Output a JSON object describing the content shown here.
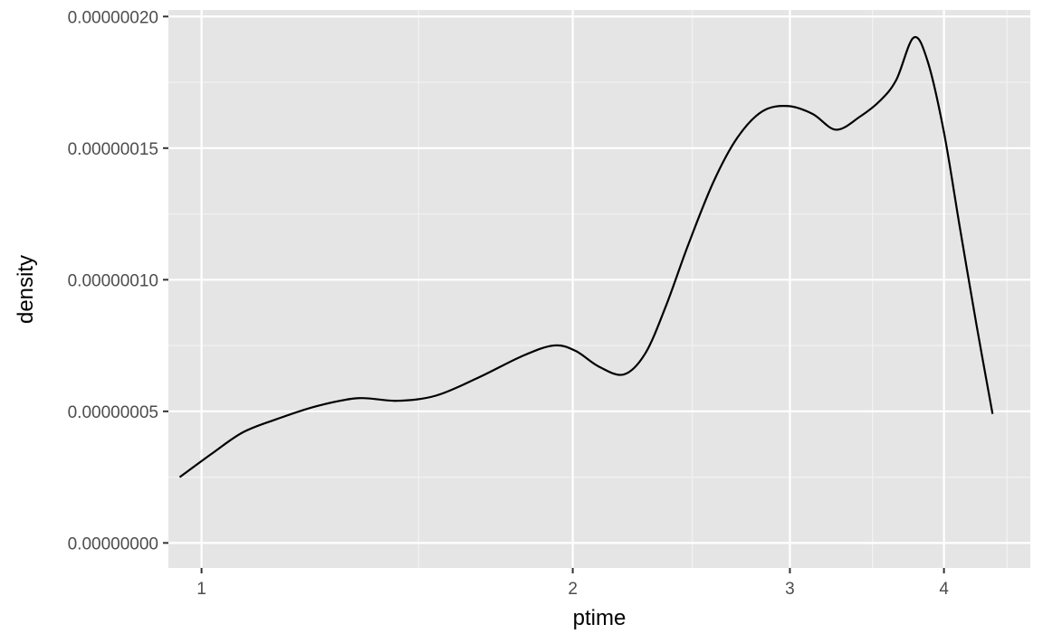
{
  "chart_data": {
    "type": "line",
    "title": "",
    "xlabel": "ptime",
    "ylabel": "density",
    "x_scale": "log10",
    "xlim": [
      0.94,
      4.7
    ],
    "ylim": [
      -9.5e-09,
      2.025e-07
    ],
    "x_ticks": [
      {
        "value": 1,
        "label": "1"
      },
      {
        "value": 2,
        "label": "2"
      },
      {
        "value": 3,
        "label": "3"
      },
      {
        "value": 4,
        "label": "4"
      }
    ],
    "x_minor_ticks": [
      1.5,
      2.5,
      3.5,
      4.5
    ],
    "y_ticks": [
      {
        "value": 0,
        "label": "0.00000000"
      },
      {
        "value": 5e-08,
        "label": "0.00000005"
      },
      {
        "value": 1e-07,
        "label": "0.00000010"
      },
      {
        "value": 1.5e-07,
        "label": "0.00000015"
      },
      {
        "value": 2e-07,
        "label": "0.00000020"
      }
    ],
    "y_minor_ticks": [
      2.5e-08,
      7.5e-08,
      1.25e-07,
      1.75e-07
    ],
    "grid": true,
    "series": [
      {
        "color": "#000000",
        "x": [
          0.96,
          1.02,
          1.08,
          1.15,
          1.24,
          1.34,
          1.44,
          1.55,
          1.68,
          1.82,
          1.93,
          2.01,
          2.1,
          2.2,
          2.29,
          2.38,
          2.48,
          2.6,
          2.72,
          2.85,
          2.99,
          3.13,
          3.27,
          3.42,
          3.55,
          3.66,
          3.78,
          3.88,
          4.0,
          4.12,
          4.25,
          4.38
        ],
        "y": [
          2.5e-08,
          3.4e-08,
          4.2e-08,
          4.7e-08,
          5.2e-08,
          5.5e-08,
          5.4e-08,
          5.6e-08,
          6.3e-08,
          7.1e-08,
          7.5e-08,
          7.3e-08,
          6.7e-08,
          6.4e-08,
          7.2e-08,
          9e-08,
          1.13e-07,
          1.37e-07,
          1.54e-07,
          1.64e-07,
          1.66e-07,
          1.63e-07,
          1.57e-07,
          1.62e-07,
          1.68e-07,
          1.76e-07,
          1.92e-07,
          1.83e-07,
          1.56e-07,
          1.2e-07,
          8.3e-08,
          4.9e-08
        ]
      }
    ]
  }
}
